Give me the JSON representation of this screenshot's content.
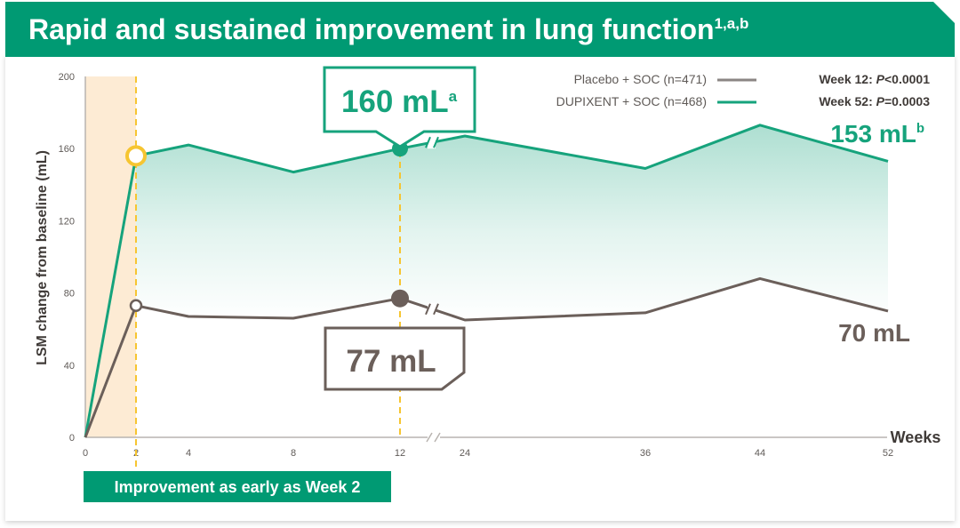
{
  "header": {
    "title": "Rapid and sustained improvement in lung function",
    "title_sup": "1,a,b",
    "color": "#009a73"
  },
  "legend": {
    "placebo_label": "Placebo + SOC (n=471)",
    "dupixent_label": "DUPIXENT + SOC (n=468)",
    "week12_prefix": "Week 12: ",
    "week12_p": "P",
    "week12_value": "<0.0001",
    "week52_prefix": "Week 52: ",
    "week52_p": "P",
    "week52_value": "=0.0003"
  },
  "callouts": {
    "dupixent_week12": "160 mL",
    "dupixent_week12_sup": "a",
    "placebo_week12": "77 mL",
    "dupixent_week52": "153 mL",
    "dupixent_week52_sup": "b",
    "placebo_week52": "70 mL"
  },
  "badge": {
    "label": "Improvement as early as Week 2"
  },
  "colors": {
    "dupixent": "#16a37c",
    "placebo": "#6b5f5a",
    "highlight": "#f6c531",
    "early_band": "#fdebd4",
    "axis": "#b9b4b0"
  },
  "chart_data": {
    "type": "line",
    "xlabel": "Weeks",
    "ylabel": "LSM change from baseline (mL)",
    "ylim": [
      0,
      200
    ],
    "yticks": [
      0,
      40,
      80,
      120,
      160,
      200
    ],
    "x": [
      0,
      2,
      4,
      8,
      12,
      24,
      36,
      44,
      52
    ],
    "x_tick_labels": [
      "0",
      "2",
      "4",
      "8",
      "12",
      "24",
      "36",
      "44",
      "52"
    ],
    "axis_break_after_x": 12,
    "series": [
      {
        "name": "DUPIXENT + SOC (n=468)",
        "values": [
          0,
          156,
          162,
          147,
          160,
          167,
          149,
          173,
          153
        ]
      },
      {
        "name": "Placebo + SOC (n=471)",
        "values": [
          0,
          73,
          67,
          66,
          77,
          65,
          69,
          88,
          70
        ]
      }
    ],
    "highlight_weeks": [
      2,
      12
    ],
    "early_band_weeks": [
      0,
      2
    ]
  }
}
